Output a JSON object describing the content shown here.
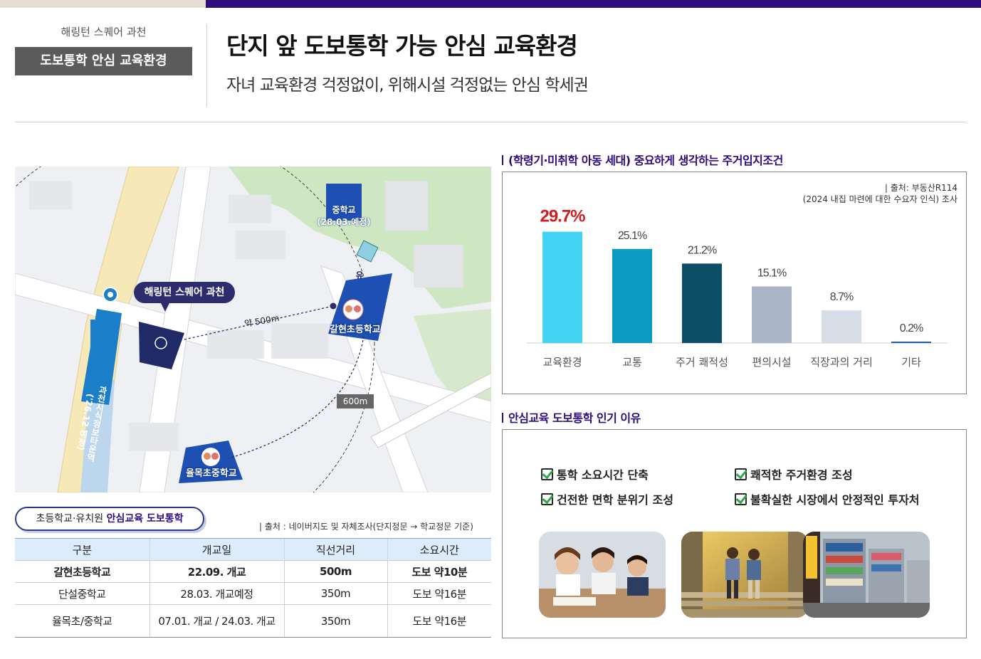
{
  "header": {
    "brand": "해링턴 스퀘어 과천",
    "section": "도보통학 안심 교육환경",
    "headline": "단지 앞 도보통학 가능 안심 교육환경",
    "subline": "자녀 교육환경 걱정없이, 위해시설 걱정없는 안심 학세권"
  },
  "map": {
    "callout": "해링턴 스퀘어 과천",
    "station": "과천지식정보타운역 ('26.12 예정)",
    "middle_school": "중학교",
    "middle_school_note": "(28.03.예정)",
    "kindergarten": "유",
    "galhyeon_school": "갈현초등학교",
    "yulmok_school": "율목초중학교",
    "distance_500": "약 500m",
    "distance_600": "600m"
  },
  "table": {
    "pill_prefix": "초등학교·유치원 ",
    "pill_highlight": "안심교육 도보통학",
    "source": "출처 : 네이버지도 및 자체조사(단지정문 → 학교정문 기준)",
    "headers": [
      "구분",
      "개교일",
      "직선거리",
      "소요시간"
    ],
    "rows": [
      [
        "갈현초등학교",
        "22.09. 개교",
        "500m",
        "도보 약10분"
      ],
      [
        "단설중학교",
        "28.03. 개교예정",
        "350m",
        "도보 약16분"
      ],
      [
        "율목초/중학교",
        "07.01. 개교 / 24.03. 개교",
        "350m",
        "도보 약16분"
      ]
    ]
  },
  "chart_panel": {
    "title": "(학령기·미취학 아동 세대) 중요하게 생각하는 주거입지조건",
    "source_line1": "출처: 부동산R114",
    "source_line2": "(2024 내집 마련에 대한 수요자 인식) 조사"
  },
  "chart_data": {
    "type": "bar",
    "categories": [
      "교육환경",
      "교통",
      "주거 쾌적성",
      "편의시설",
      "직장과의 거리",
      "기타"
    ],
    "values": [
      29.7,
      25.1,
      21.2,
      15.1,
      8.7,
      0.2
    ],
    "value_labels": [
      "29.7%",
      "25.1%",
      "21.2%",
      "15.1%",
      "8.7%",
      "0.2%"
    ],
    "ylim": [
      0,
      30
    ],
    "colors": [
      "#41d4f5",
      "#0b9ac2",
      "#0d4f66",
      "#aab6c8",
      "#d6dde6",
      "#2a5aa0"
    ],
    "highlight_color": "#d21d1d",
    "grid": false
  },
  "reasons_panel": {
    "title": "안심교육 도보통학 인기 이유",
    "items": [
      "통학 소요시간 단축",
      "쾌적한 주거환경 조성",
      "건전한 면학 분위기 조성",
      "불확실한 시장에서 안정적인 투자처"
    ]
  }
}
